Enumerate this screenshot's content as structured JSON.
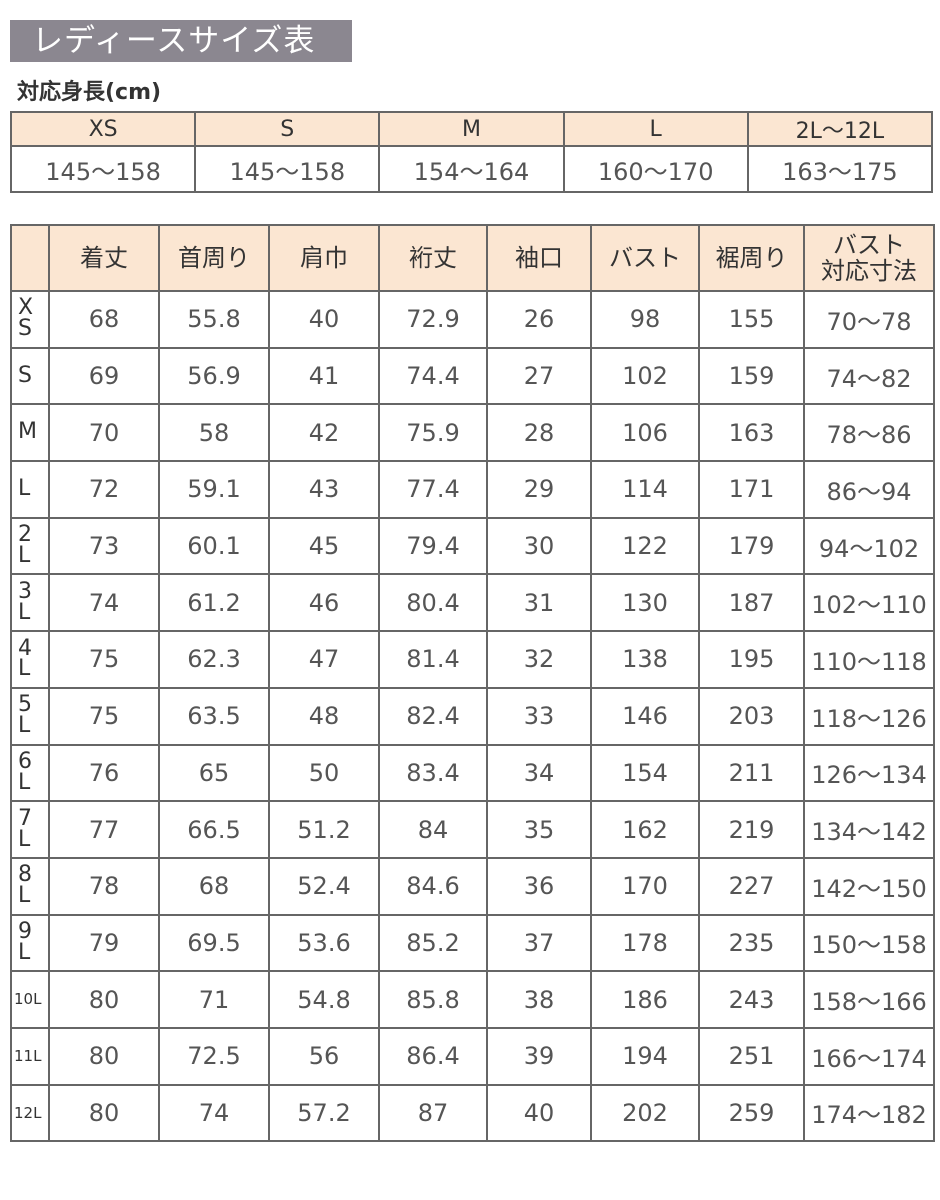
{
  "title": "レディースサイズ表",
  "subtitle": "対応身長(cm)",
  "heights": {
    "sizes": [
      "XS",
      "S",
      "M",
      "L",
      "2L〜12L"
    ],
    "values": [
      "145〜158",
      "145〜158",
      "154〜164",
      "160〜170",
      "163〜175"
    ]
  },
  "table": {
    "headers": [
      "",
      "着丈",
      "首周り",
      "肩巾",
      "裄丈",
      "袖口",
      "バスト",
      "裾周り",
      "バスト\n対応寸法"
    ],
    "rows": [
      [
        "XS",
        "68",
        "55.8",
        "40",
        "72.9",
        "26",
        "98",
        "155",
        "70〜78"
      ],
      [
        "S",
        "69",
        "56.9",
        "41",
        "74.4",
        "27",
        "102",
        "159",
        "74〜82"
      ],
      [
        "M",
        "70",
        "58",
        "42",
        "75.9",
        "28",
        "106",
        "163",
        "78〜86"
      ],
      [
        "L",
        "72",
        "59.1",
        "43",
        "77.4",
        "29",
        "114",
        "171",
        "86〜94"
      ],
      [
        "2L",
        "73",
        "60.1",
        "45",
        "79.4",
        "30",
        "122",
        "179",
        "94〜102"
      ],
      [
        "3L",
        "74",
        "61.2",
        "46",
        "80.4",
        "31",
        "130",
        "187",
        "102〜110"
      ],
      [
        "4L",
        "75",
        "62.3",
        "47",
        "81.4",
        "32",
        "138",
        "195",
        "110〜118"
      ],
      [
        "5L",
        "75",
        "63.5",
        "48",
        "82.4",
        "33",
        "146",
        "203",
        "118〜126"
      ],
      [
        "6L",
        "76",
        "65",
        "50",
        "83.4",
        "34",
        "154",
        "211",
        "126〜134"
      ],
      [
        "7L",
        "77",
        "66.5",
        "51.2",
        "84",
        "35",
        "162",
        "219",
        "134〜142"
      ],
      [
        "8L",
        "78",
        "68",
        "52.4",
        "84.6",
        "36",
        "170",
        "227",
        "142〜150"
      ],
      [
        "9L",
        "79",
        "69.5",
        "53.6",
        "85.2",
        "37",
        "178",
        "235",
        "150〜158"
      ],
      [
        "10L",
        "80",
        "71",
        "54.8",
        "85.8",
        "38",
        "186",
        "243",
        "158〜166"
      ],
      [
        "11L",
        "80",
        "72.5",
        "56",
        "86.4",
        "39",
        "194",
        "251",
        "166〜174"
      ],
      [
        "12L",
        "80",
        "74",
        "57.2",
        "87",
        "40",
        "202",
        "259",
        "174〜182"
      ]
    ]
  },
  "colors": {
    "title_bg": "#8b8790",
    "header_bg": "#fbe6d2",
    "border": "#666666"
  }
}
